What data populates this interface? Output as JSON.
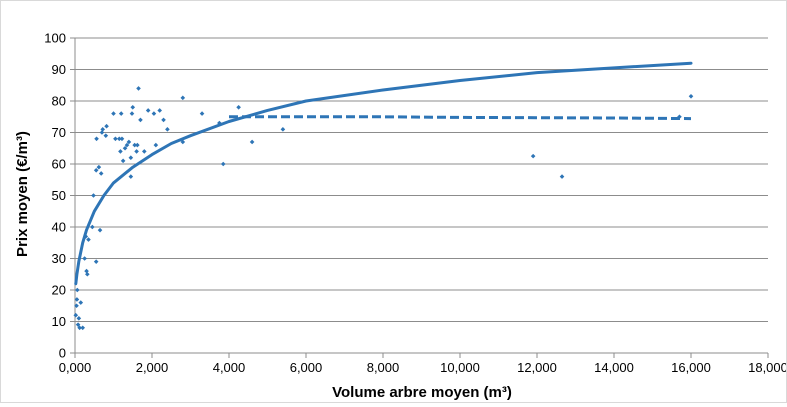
{
  "chart_data": {
    "type": "scatter",
    "title": "",
    "xlabel": "Volume arbre moyen (m³)",
    "ylabel": "Prix moyen (€/m³)",
    "xlim": [
      0,
      18000
    ],
    "ylim": [
      0,
      100
    ],
    "x_ticks": [
      0,
      2000,
      4000,
      6000,
      8000,
      10000,
      12000,
      14000,
      16000,
      18000
    ],
    "x_tick_labels": [
      "0,000",
      "2,000",
      "4,000",
      "6,000",
      "8,000",
      "10,000",
      "12,000",
      "14,000",
      "16,000",
      "18,000"
    ],
    "y_ticks": [
      0,
      10,
      20,
      30,
      40,
      50,
      60,
      70,
      80,
      90,
      100
    ],
    "y_tick_labels": [
      "0",
      "10",
      "20",
      "30",
      "40",
      "50",
      "60",
      "70",
      "80",
      "90",
      "100"
    ],
    "grid": "horizontal",
    "legend": "none",
    "colors": {
      "series": "#2e75b6",
      "gridline": "#8c8c8c",
      "axis": "#8c8c8c"
    },
    "series": [
      {
        "type": "scatter",
        "points": [
          [
            20,
            12
          ],
          [
            40,
            15
          ],
          [
            50,
            17
          ],
          [
            60,
            20
          ],
          [
            80,
            9
          ],
          [
            100,
            11
          ],
          [
            120,
            8
          ],
          [
            150,
            16
          ],
          [
            200,
            8
          ],
          [
            250,
            30
          ],
          [
            280,
            37
          ],
          [
            300,
            26
          ],
          [
            320,
            25
          ],
          [
            350,
            36
          ],
          [
            450,
            40
          ],
          [
            480,
            50
          ],
          [
            550,
            29
          ],
          [
            550,
            58
          ],
          [
            560,
            68
          ],
          [
            620,
            59
          ],
          [
            650,
            39
          ],
          [
            680,
            57
          ],
          [
            700,
            70
          ],
          [
            720,
            71
          ],
          [
            800,
            69
          ],
          [
            820,
            72
          ],
          [
            1000,
            76
          ],
          [
            1050,
            68
          ],
          [
            1150,
            68
          ],
          [
            1180,
            64
          ],
          [
            1200,
            76
          ],
          [
            1220,
            68
          ],
          [
            1250,
            61
          ],
          [
            1300,
            65
          ],
          [
            1350,
            66
          ],
          [
            1400,
            67
          ],
          [
            1450,
            62
          ],
          [
            1450,
            56
          ],
          [
            1480,
            76
          ],
          [
            1500,
            78
          ],
          [
            1550,
            66
          ],
          [
            1600,
            64
          ],
          [
            1620,
            66
          ],
          [
            1650,
            84
          ],
          [
            1700,
            74
          ],
          [
            1800,
            64
          ],
          [
            1900,
            77
          ],
          [
            2050,
            76
          ],
          [
            2100,
            66
          ],
          [
            2200,
            77
          ],
          [
            2300,
            74
          ],
          [
            2400,
            71
          ],
          [
            2800,
            81
          ],
          [
            2800,
            67
          ],
          [
            3300,
            76
          ],
          [
            3750,
            73
          ],
          [
            3850,
            60
          ],
          [
            4250,
            78
          ],
          [
            4600,
            67
          ],
          [
            5400,
            71
          ],
          [
            11900,
            62.5
          ],
          [
            12650,
            56
          ],
          [
            15700,
            75
          ],
          [
            16000,
            81.5
          ]
        ]
      },
      {
        "type": "line",
        "style": "solid",
        "points": [
          [
            20,
            22
          ],
          [
            50,
            25
          ],
          [
            100,
            29
          ],
          [
            200,
            35
          ],
          [
            300,
            39
          ],
          [
            500,
            45
          ],
          [
            750,
            50
          ],
          [
            1000,
            54
          ],
          [
            1500,
            59
          ],
          [
            2000,
            63
          ],
          [
            2500,
            66.5
          ],
          [
            3000,
            69
          ],
          [
            4000,
            73.5
          ],
          [
            5000,
            77
          ],
          [
            6000,
            80
          ],
          [
            8000,
            83.5
          ],
          [
            10000,
            86.5
          ],
          [
            12000,
            89
          ],
          [
            14000,
            90.5
          ],
          [
            16000,
            92
          ]
        ]
      },
      {
        "type": "line",
        "style": "dashed",
        "points": [
          [
            4000,
            75
          ],
          [
            5000,
            75
          ],
          [
            6000,
            75
          ],
          [
            8000,
            75
          ],
          [
            10000,
            74.8
          ],
          [
            12000,
            74.7
          ],
          [
            14000,
            74.6
          ],
          [
            16000,
            74.4
          ]
        ]
      }
    ]
  }
}
